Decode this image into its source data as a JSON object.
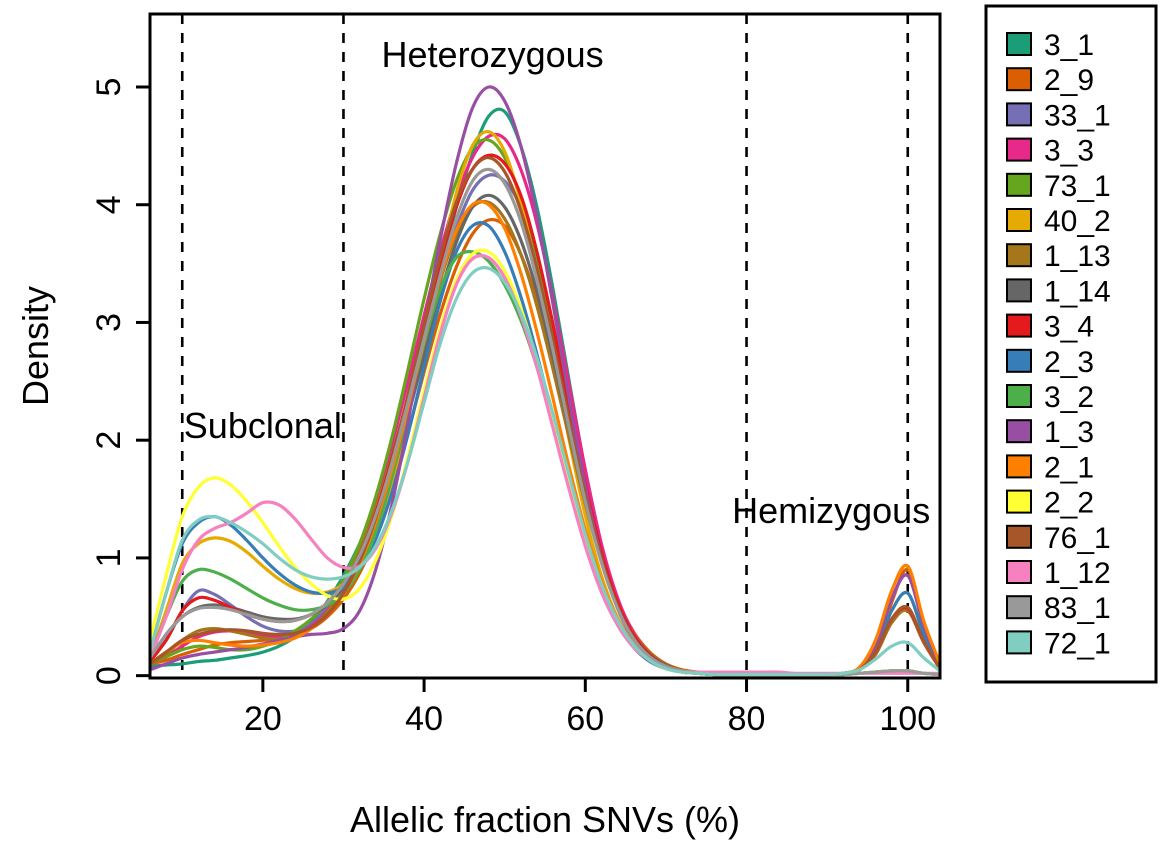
{
  "chart_data": {
    "type": "line",
    "title": "",
    "xlabel": "Allelic fraction SNVs (%)",
    "ylabel": "Density",
    "xlim": [
      6,
      104
    ],
    "ylim": [
      -0.02,
      5.62
    ],
    "x_ticks": [
      20,
      40,
      60,
      80,
      100
    ],
    "y_ticks": [
      0,
      1,
      2,
      3,
      4,
      5
    ],
    "grid": false,
    "legend_position": "right",
    "vlines": [
      10,
      30,
      80,
      100
    ],
    "annotations": [
      {
        "text": "Heterozygous",
        "x": 48.5,
        "y": 5.27
      },
      {
        "text": "Subclonal",
        "x": 20,
        "y": 2.12
      },
      {
        "text": "Hemizygous",
        "x": 90.5,
        "y": 1.4
      }
    ],
    "x": [
      6,
      8,
      10,
      12,
      14,
      16,
      18,
      20,
      22,
      24,
      26,
      28,
      30,
      32,
      34,
      36,
      38,
      40,
      42,
      44,
      46,
      48,
      50,
      52,
      54,
      56,
      58,
      60,
      62,
      64,
      66,
      68,
      70,
      72,
      74,
      76,
      78,
      80,
      82,
      84,
      86,
      88,
      90,
      92,
      94,
      96,
      98,
      100,
      102,
      104
    ],
    "series": [
      {
        "name": "3_1",
        "color": "#1b9e77",
        "values": [
          0.08,
          0.09,
          0.1,
          0.12,
          0.13,
          0.15,
          0.17,
          0.2,
          0.25,
          0.33,
          0.45,
          0.63,
          0.85,
          1.12,
          1.45,
          1.87,
          2.36,
          2.91,
          3.44,
          3.98,
          4.43,
          4.75,
          4.79,
          4.5,
          3.98,
          3.28,
          2.5,
          1.74,
          1.1,
          0.64,
          0.34,
          0.17,
          0.08,
          0.04,
          0.02,
          0.01,
          0.01,
          0.01,
          0.01,
          0.01,
          0.01,
          0.01,
          0.01,
          0.01,
          0.02,
          0.03,
          0.04,
          0.04,
          0.02,
          0.01
        ]
      },
      {
        "name": "2_9",
        "color": "#d95f02",
        "values": [
          0.1,
          0.13,
          0.18,
          0.22,
          0.26,
          0.28,
          0.29,
          0.3,
          0.32,
          0.35,
          0.4,
          0.5,
          0.65,
          0.87,
          1.18,
          1.58,
          2.06,
          2.58,
          3.07,
          3.47,
          3.75,
          3.87,
          3.82,
          3.58,
          3.18,
          2.66,
          2.08,
          1.52,
          1.02,
          0.64,
          0.37,
          0.2,
          0.1,
          0.05,
          0.03,
          0.02,
          0.01,
          0.01,
          0.01,
          0.01,
          0.01,
          0.01,
          0.01,
          0.02,
          0.05,
          0.2,
          0.62,
          0.9,
          0.45,
          0.1
        ]
      },
      {
        "name": "33_1",
        "color": "#7570b3",
        "values": [
          0.15,
          0.3,
          0.55,
          0.72,
          0.69,
          0.6,
          0.5,
          0.42,
          0.38,
          0.38,
          0.44,
          0.58,
          0.8,
          1.1,
          1.45,
          1.86,
          2.33,
          2.84,
          3.35,
          3.8,
          4.12,
          4.25,
          4.2,
          3.98,
          3.55,
          2.95,
          2.26,
          1.6,
          1.03,
          0.61,
          0.33,
          0.16,
          0.08,
          0.04,
          0.02,
          0.01,
          0.01,
          0.01,
          0.01,
          0.01,
          0.01,
          0.01,
          0.01,
          0.02,
          0.06,
          0.25,
          0.65,
          0.85,
          0.42,
          0.09
        ]
      },
      {
        "name": "3_3",
        "color": "#e7298a",
        "values": [
          0.1,
          0.16,
          0.25,
          0.33,
          0.37,
          0.38,
          0.36,
          0.34,
          0.33,
          0.35,
          0.42,
          0.55,
          0.77,
          1.08,
          1.48,
          1.96,
          2.5,
          3.06,
          3.6,
          4.06,
          4.4,
          4.58,
          4.56,
          4.3,
          3.84,
          3.2,
          2.47,
          1.75,
          1.12,
          0.66,
          0.36,
          0.18,
          0.08,
          0.04,
          0.02,
          0.01,
          0.01,
          0.01,
          0.01,
          0.01,
          0.01,
          0.01,
          0.01,
          0.02,
          0.05,
          0.18,
          0.45,
          0.55,
          0.28,
          0.06
        ]
      },
      {
        "name": "73_1",
        "color": "#66a61e",
        "values": [
          0.1,
          0.16,
          0.22,
          0.25,
          0.24,
          0.22,
          0.22,
          0.25,
          0.3,
          0.38,
          0.48,
          0.62,
          0.82,
          1.12,
          1.52,
          2.02,
          2.6,
          3.2,
          3.75,
          4.2,
          4.48,
          4.55,
          4.4,
          4.05,
          3.53,
          2.88,
          2.18,
          1.53,
          0.98,
          0.58,
          0.32,
          0.16,
          0.08,
          0.04,
          0.02,
          0.01,
          0.01,
          0.01,
          0.01,
          0.01,
          0.01,
          0.01,
          0.01,
          0.01,
          0.02,
          0.03,
          0.04,
          0.04,
          0.02,
          0.01
        ]
      },
      {
        "name": "40_2",
        "color": "#e6ab02",
        "values": [
          0.15,
          0.55,
          0.95,
          1.12,
          1.17,
          1.14,
          1.05,
          0.93,
          0.82,
          0.74,
          0.7,
          0.71,
          0.78,
          0.94,
          1.22,
          1.65,
          2.2,
          2.85,
          3.5,
          4.1,
          4.5,
          4.62,
          4.45,
          4.02,
          3.42,
          2.72,
          2.0,
          1.36,
          0.85,
          0.49,
          0.26,
          0.13,
          0.06,
          0.03,
          0.02,
          0.01,
          0.01,
          0.01,
          0.01,
          0.01,
          0.01,
          0.01,
          0.01,
          0.02,
          0.06,
          0.22,
          0.55,
          0.7,
          0.35,
          0.08
        ]
      },
      {
        "name": "1_13",
        "color": "#a6761d",
        "values": [
          0.1,
          0.18,
          0.3,
          0.38,
          0.4,
          0.38,
          0.35,
          0.32,
          0.31,
          0.33,
          0.4,
          0.54,
          0.76,
          1.05,
          1.42,
          1.86,
          2.36,
          2.88,
          3.36,
          3.75,
          3.98,
          4.02,
          3.88,
          3.58,
          3.14,
          2.6,
          2.02,
          1.46,
          0.97,
          0.6,
          0.34,
          0.18,
          0.09,
          0.04,
          0.02,
          0.01,
          0.01,
          0.01,
          0.01,
          0.01,
          0.01,
          0.01,
          0.01,
          0.02,
          0.05,
          0.18,
          0.45,
          0.55,
          0.28,
          0.06
        ]
      },
      {
        "name": "1_14",
        "color": "#666666",
        "values": [
          0.15,
          0.35,
          0.5,
          0.58,
          0.6,
          0.58,
          0.54,
          0.5,
          0.48,
          0.48,
          0.52,
          0.6,
          0.74,
          0.96,
          1.28,
          1.7,
          2.2,
          2.72,
          3.24,
          3.68,
          3.98,
          4.08,
          3.98,
          3.7,
          3.26,
          2.7,
          2.09,
          1.5,
          0.99,
          0.61,
          0.34,
          0.18,
          0.09,
          0.04,
          0.02,
          0.01,
          0.01,
          0.01,
          0.01,
          0.01,
          0.01,
          0.01,
          0.01,
          0.01,
          0.02,
          0.03,
          0.04,
          0.04,
          0.02,
          0.01
        ]
      },
      {
        "name": "3_4",
        "color": "#e41a1c",
        "values": [
          0.12,
          0.3,
          0.55,
          0.66,
          0.64,
          0.58,
          0.52,
          0.48,
          0.46,
          0.47,
          0.52,
          0.62,
          0.78,
          1.02,
          1.38,
          1.84,
          2.38,
          2.95,
          3.5,
          3.98,
          4.3,
          4.42,
          4.35,
          4.08,
          3.6,
          2.98,
          2.28,
          1.62,
          1.05,
          0.62,
          0.34,
          0.17,
          0.08,
          0.04,
          0.02,
          0.01,
          0.01,
          0.01,
          0.01,
          0.01,
          0.01,
          0.01,
          0.01,
          0.02,
          0.05,
          0.2,
          0.48,
          0.57,
          0.29,
          0.06
        ]
      },
      {
        "name": "2_3",
        "color": "#377eb8",
        "values": [
          0.2,
          0.7,
          1.12,
          1.3,
          1.35,
          1.28,
          1.15,
          1.0,
          0.87,
          0.77,
          0.71,
          0.7,
          0.75,
          0.9,
          1.16,
          1.55,
          2.05,
          2.62,
          3.18,
          3.6,
          3.82,
          3.82,
          3.6,
          3.22,
          2.73,
          2.18,
          1.62,
          1.12,
          0.72,
          0.43,
          0.24,
          0.12,
          0.06,
          0.03,
          0.02,
          0.01,
          0.01,
          0.01,
          0.01,
          0.01,
          0.01,
          0.01,
          0.01,
          0.02,
          0.06,
          0.22,
          0.55,
          0.7,
          0.35,
          0.08
        ]
      },
      {
        "name": "3_2",
        "color": "#4daf4a",
        "values": [
          0.15,
          0.5,
          0.8,
          0.9,
          0.88,
          0.82,
          0.74,
          0.66,
          0.6,
          0.56,
          0.56,
          0.6,
          0.7,
          0.9,
          1.22,
          1.68,
          2.25,
          2.82,
          3.28,
          3.55,
          3.6,
          3.52,
          3.32,
          3.02,
          2.62,
          2.14,
          1.64,
          1.17,
          0.77,
          0.47,
          0.27,
          0.14,
          0.07,
          0.03,
          0.02,
          0.01,
          0.01,
          0.01,
          0.01,
          0.01,
          0.01,
          0.01,
          0.01,
          0.01,
          0.02,
          0.03,
          0.04,
          0.04,
          0.02,
          0.01
        ]
      },
      {
        "name": "1_3",
        "color": "#984ea3",
        "values": [
          0.05,
          0.1,
          0.15,
          0.18,
          0.2,
          0.22,
          0.24,
          0.27,
          0.3,
          0.33,
          0.35,
          0.36,
          0.4,
          0.55,
          0.9,
          1.45,
          2.15,
          2.95,
          3.7,
          4.35,
          4.82,
          5.0,
          4.88,
          4.5,
          3.9,
          3.15,
          2.35,
          1.6,
          1.0,
          0.57,
          0.3,
          0.15,
          0.07,
          0.03,
          0.02,
          0.01,
          0.01,
          0.01,
          0.01,
          0.01,
          0.01,
          0.01,
          0.01,
          0.02,
          0.06,
          0.25,
          0.65,
          0.85,
          0.42,
          0.09
        ]
      },
      {
        "name": "2_1",
        "color": "#ff7f00",
        "values": [
          0.1,
          0.2,
          0.28,
          0.3,
          0.28,
          0.26,
          0.25,
          0.26,
          0.28,
          0.32,
          0.4,
          0.52,
          0.7,
          0.95,
          1.3,
          1.75,
          2.28,
          2.85,
          3.38,
          3.78,
          4.0,
          4.0,
          3.8,
          3.42,
          2.92,
          2.35,
          1.77,
          1.24,
          0.8,
          0.48,
          0.27,
          0.14,
          0.07,
          0.03,
          0.02,
          0.01,
          0.01,
          0.01,
          0.01,
          0.01,
          0.01,
          0.01,
          0.01,
          0.02,
          0.07,
          0.3,
          0.72,
          0.93,
          0.46,
          0.1
        ]
      },
      {
        "name": "2_2",
        "color": "#ffff33",
        "values": [
          0.3,
          0.85,
          1.35,
          1.6,
          1.68,
          1.62,
          1.48,
          1.3,
          1.1,
          0.92,
          0.78,
          0.68,
          0.65,
          0.74,
          0.98,
          1.36,
          1.86,
          2.42,
          2.95,
          3.36,
          3.58,
          3.6,
          3.44,
          3.12,
          2.68,
          2.16,
          1.63,
          1.14,
          0.74,
          0.45,
          0.25,
          0.13,
          0.06,
          0.03,
          0.02,
          0.01,
          0.01,
          0.01,
          0.01,
          0.01,
          0.01,
          0.01,
          0.01,
          0.01,
          0.02,
          0.03,
          0.04,
          0.04,
          0.02,
          0.01
        ]
      },
      {
        "name": "76_1",
        "color": "#a65628",
        "values": [
          0.1,
          0.2,
          0.3,
          0.35,
          0.38,
          0.39,
          0.38,
          0.36,
          0.35,
          0.36,
          0.41,
          0.52,
          0.7,
          0.97,
          1.34,
          1.82,
          2.38,
          2.98,
          3.55,
          4.02,
          4.3,
          4.4,
          4.28,
          3.95,
          3.45,
          2.84,
          2.17,
          1.53,
          0.99,
          0.59,
          0.32,
          0.16,
          0.08,
          0.04,
          0.02,
          0.01,
          0.01,
          0.01,
          0.01,
          0.01,
          0.01,
          0.01,
          0.01,
          0.02,
          0.05,
          0.2,
          0.48,
          0.58,
          0.29,
          0.06
        ]
      },
      {
        "name": "1_12",
        "color": "#f781bf",
        "values": [
          0.15,
          0.5,
          0.9,
          1.15,
          1.25,
          1.3,
          1.38,
          1.47,
          1.45,
          1.33,
          1.16,
          1.0,
          0.92,
          0.93,
          1.08,
          1.38,
          1.82,
          2.36,
          2.9,
          3.32,
          3.54,
          3.55,
          3.38,
          3.06,
          2.62,
          2.1,
          1.58,
          1.1,
          0.71,
          0.43,
          0.24,
          0.13,
          0.07,
          0.04,
          0.03,
          0.03,
          0.03,
          0.03,
          0.03,
          0.03,
          0.02,
          0.02,
          0.02,
          0.02,
          0.02,
          0.02,
          0.02,
          0.02,
          0.02,
          0.02
        ]
      },
      {
        "name": "83_1",
        "color": "#999999",
        "values": [
          0.15,
          0.35,
          0.5,
          0.57,
          0.58,
          0.56,
          0.52,
          0.48,
          0.46,
          0.47,
          0.52,
          0.62,
          0.78,
          1.02,
          1.36,
          1.8,
          2.32,
          2.86,
          3.4,
          3.88,
          4.2,
          4.3,
          4.18,
          3.86,
          3.36,
          2.76,
          2.1,
          1.48,
          0.96,
          0.57,
          0.31,
          0.16,
          0.08,
          0.04,
          0.02,
          0.01,
          0.01,
          0.01,
          0.01,
          0.01,
          0.01,
          0.01,
          0.01,
          0.01,
          0.02,
          0.03,
          0.04,
          0.04,
          0.02,
          0.01
        ]
      },
      {
        "name": "72_1",
        "color": "#80cdc1",
        "values": [
          0.2,
          0.7,
          1.15,
          1.32,
          1.35,
          1.3,
          1.22,
          1.12,
          1.0,
          0.9,
          0.84,
          0.82,
          0.84,
          0.92,
          1.1,
          1.4,
          1.82,
          2.32,
          2.82,
          3.2,
          3.42,
          3.46,
          3.34,
          3.08,
          2.7,
          2.22,
          1.7,
          1.2,
          0.78,
          0.47,
          0.26,
          0.13,
          0.06,
          0.03,
          0.02,
          0.01,
          0.01,
          0.01,
          0.01,
          0.01,
          0.01,
          0.01,
          0.01,
          0.02,
          0.05,
          0.14,
          0.25,
          0.28,
          0.15,
          0.04
        ]
      }
    ]
  }
}
